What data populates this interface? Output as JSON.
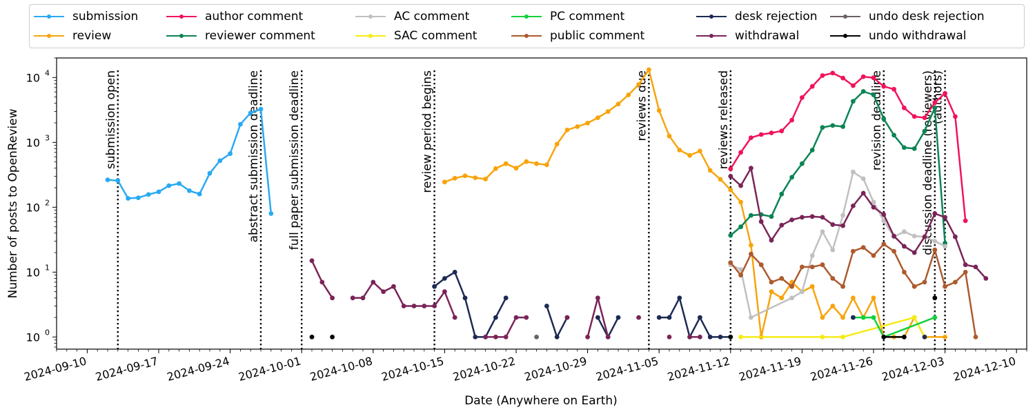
{
  "chart_data": {
    "type": "line",
    "xlabel": "Date (Anywhere on Earth)",
    "ylabel": "Number of posts to OpenReview",
    "yscale": "log",
    "ylim": [
      0.65,
      20000
    ],
    "xlim": [
      "2024-09-07",
      "2024-12-11"
    ],
    "grid": false,
    "legend_position": "top",
    "x_ticks": [
      "2024-09-10",
      "2024-09-17",
      "2024-09-24",
      "2024-10-01",
      "2024-10-08",
      "2024-10-15",
      "2024-10-22",
      "2024-10-29",
      "2024-11-05",
      "2024-11-12",
      "2024-11-19",
      "2024-11-26",
      "2024-12-03",
      "2024-12-10"
    ],
    "y_ticks": [
      {
        "value": 1,
        "label": "10",
        "exp": "0"
      },
      {
        "value": 10,
        "label": "10",
        "exp": "1"
      },
      {
        "value": 100,
        "label": "10",
        "exp": "2"
      },
      {
        "value": 1000,
        "label": "10",
        "exp": "3"
      },
      {
        "value": 10000,
        "label": "10",
        "exp": "4"
      }
    ],
    "deadlines": [
      {
        "date": "2024-09-13",
        "label": "submission open"
      },
      {
        "date": "2024-09-27",
        "label": "abstract submission deadline"
      },
      {
        "date": "2024-10-01",
        "label": "full paper submission deadline"
      },
      {
        "date": "2024-10-14",
        "label": "review period begins"
      },
      {
        "date": "2024-11-04",
        "label": "reviews due"
      },
      {
        "date": "2024-11-12",
        "label": "reviews released"
      },
      {
        "date": "2024-11-27",
        "label": "revision deadline"
      },
      {
        "date": "2024-12-02",
        "label": "discussion deadline (reviewers)"
      },
      {
        "date": "2024-12-03",
        "label": "(authors)"
      }
    ],
    "series": [
      {
        "name": "submission",
        "color": "#29aaf2",
        "points": [
          [
            "2024-09-12",
            265
          ],
          [
            "2024-09-13",
            258
          ],
          [
            "2024-09-14",
            137
          ],
          [
            "2024-09-15",
            140
          ],
          [
            "2024-09-16",
            157
          ],
          [
            "2024-09-17",
            173
          ],
          [
            "2024-09-18",
            215
          ],
          [
            "2024-09-19",
            232
          ],
          [
            "2024-09-20",
            180
          ],
          [
            "2024-09-21",
            160
          ],
          [
            "2024-09-22",
            333
          ],
          [
            "2024-09-23",
            522
          ],
          [
            "2024-09-24",
            669
          ],
          [
            "2024-09-25",
            1900
          ],
          [
            "2024-09-26",
            2850
          ],
          [
            "2024-09-27",
            3250
          ],
          [
            "2024-09-28",
            80
          ]
        ]
      },
      {
        "name": "review",
        "color": "#f7a40c",
        "points": [
          [
            "2024-10-15",
            245
          ],
          [
            "2024-10-16",
            280
          ],
          [
            "2024-10-17",
            305
          ],
          [
            "2024-10-18",
            285
          ],
          [
            "2024-10-19",
            272
          ],
          [
            "2024-10-20",
            395
          ],
          [
            "2024-10-21",
            470
          ],
          [
            "2024-10-22",
            400
          ],
          [
            "2024-10-23",
            505
          ],
          [
            "2024-10-24",
            470
          ],
          [
            "2024-10-25",
            450
          ],
          [
            "2024-10-26",
            940
          ],
          [
            "2024-10-27",
            1550
          ],
          [
            "2024-10-28",
            1750
          ],
          [
            "2024-10-29",
            1980
          ],
          [
            "2024-10-30",
            2400
          ],
          [
            "2024-10-31",
            2980
          ],
          [
            "2024-11-01",
            3900
          ],
          [
            "2024-11-02",
            5400
          ],
          [
            "2024-11-03",
            7800
          ],
          [
            "2024-11-04",
            13200
          ],
          [
            "2024-11-05",
            3100
          ],
          [
            "2024-11-06",
            1250
          ],
          [
            "2024-11-07",
            760
          ],
          [
            "2024-11-08",
            630
          ],
          [
            "2024-11-09",
            735
          ],
          [
            "2024-11-10",
            370
          ],
          [
            "2024-11-11",
            270
          ],
          [
            "2024-11-12",
            185
          ],
          [
            "2024-11-13",
            120
          ],
          [
            "2024-11-14",
            26
          ],
          [
            "2024-11-15",
            1
          ],
          [
            "2024-11-16",
            5
          ],
          [
            "2024-11-17",
            4
          ],
          [
            "2024-11-18",
            7
          ],
          [
            "2024-11-19",
            5
          ],
          [
            "2024-11-20",
            6
          ],
          [
            "2024-11-21",
            2
          ],
          [
            "2024-11-22",
            3
          ],
          [
            "2024-11-23",
            2
          ],
          [
            "2024-11-24",
            4
          ],
          [
            "2024-11-25",
            2
          ],
          [
            "2024-11-26",
            4
          ],
          [
            "2024-11-27",
            1
          ],
          [
            "2024-11-28",
            1
          ],
          [
            "2024-11-29",
            1
          ],
          [
            "2024-11-30",
            2
          ],
          [
            "2024-12-01",
            1
          ],
          [
            "2024-12-03",
            1
          ]
        ]
      },
      {
        "name": "author comment",
        "color": "#f0145a",
        "points": [
          [
            "2024-11-12",
            390
          ],
          [
            "2024-11-13",
            700
          ],
          [
            "2024-11-14",
            1180
          ],
          [
            "2024-11-15",
            1320
          ],
          [
            "2024-11-16",
            1400
          ],
          [
            "2024-11-17",
            1500
          ],
          [
            "2024-11-18",
            2200
          ],
          [
            "2024-11-19",
            4900
          ],
          [
            "2024-11-20",
            7300
          ],
          [
            "2024-11-21",
            10700
          ],
          [
            "2024-11-22",
            11700
          ],
          [
            "2024-11-23",
            9800
          ],
          [
            "2024-11-24",
            7500
          ],
          [
            "2024-11-25",
            10300
          ],
          [
            "2024-11-26",
            9900
          ],
          [
            "2024-11-27",
            7300
          ],
          [
            "2024-11-28",
            6600
          ],
          [
            "2024-11-29",
            3400
          ],
          [
            "2024-11-30",
            2500
          ],
          [
            "2024-12-01",
            2400
          ],
          [
            "2024-12-02",
            4100
          ],
          [
            "2024-12-03",
            5700
          ],
          [
            "2024-12-04",
            2500
          ],
          [
            "2024-12-05",
            62
          ]
        ]
      },
      {
        "name": "reviewer comment",
        "color": "#0c8454",
        "points": [
          [
            "2024-11-12",
            37
          ],
          [
            "2024-11-13",
            50
          ],
          [
            "2024-11-14",
            75
          ],
          [
            "2024-11-15",
            77
          ],
          [
            "2024-11-16",
            72
          ],
          [
            "2024-11-17",
            160
          ],
          [
            "2024-11-18",
            290
          ],
          [
            "2024-11-19",
            470
          ],
          [
            "2024-11-20",
            760
          ],
          [
            "2024-11-21",
            1700
          ],
          [
            "2024-11-22",
            1820
          ],
          [
            "2024-11-23",
            1750
          ],
          [
            "2024-11-24",
            4300
          ],
          [
            "2024-11-25",
            6100
          ],
          [
            "2024-11-26",
            5400
          ],
          [
            "2024-11-27",
            2300
          ],
          [
            "2024-11-28",
            1290
          ],
          [
            "2024-11-29",
            830
          ],
          [
            "2024-11-30",
            800
          ],
          [
            "2024-12-01",
            1490
          ],
          [
            "2024-12-02",
            3400
          ],
          [
            "2024-12-03",
            28
          ]
        ]
      },
      {
        "name": "AC comment",
        "color": "#c0c0c0",
        "points": [
          [
            "2024-11-12",
            13
          ],
          [
            "2024-11-13",
            11
          ],
          [
            "2024-11-14",
            2
          ],
          [
            "2024-11-18",
            4
          ],
          [
            "2024-11-19",
            5
          ],
          [
            "2024-11-20",
            18
          ],
          [
            "2024-11-21",
            42
          ],
          [
            "2024-11-22",
            22
          ],
          [
            "2024-11-23",
            75
          ],
          [
            "2024-11-24",
            350
          ],
          [
            "2024-11-25",
            275
          ],
          [
            "2024-11-26",
            120
          ],
          [
            "2024-11-27",
            62
          ],
          [
            "2024-11-28",
            35
          ],
          [
            "2024-11-29",
            42
          ],
          [
            "2024-11-30",
            36
          ],
          [
            "2024-12-01",
            35
          ],
          [
            "2024-12-02",
            30
          ],
          [
            "2024-12-03",
            25
          ]
        ]
      },
      {
        "name": "SAC comment",
        "color": "#f5eb14",
        "points": [
          [
            "2024-11-13",
            1
          ],
          [
            "2024-11-21",
            1
          ],
          [
            "2024-11-23",
            1
          ],
          [
            "2024-11-30",
            2
          ],
          [
            "2024-12-01",
            1
          ]
        ]
      },
      {
        "name": "PC comment",
        "color": "#14d03c",
        "points": [
          [
            "2024-11-24",
            2
          ],
          [
            "2024-11-25",
            2
          ],
          [
            "2024-11-26",
            2
          ],
          [
            "2024-11-27",
            1
          ],
          [
            "2024-12-02",
            2
          ]
        ]
      },
      {
        "name": "public comment",
        "color": "#ac5a2e",
        "points": [
          [
            "2024-11-12",
            14
          ],
          [
            "2024-11-13",
            9
          ],
          [
            "2024-11-14",
            19
          ],
          [
            "2024-11-15",
            13
          ],
          [
            "2024-11-16",
            7
          ],
          [
            "2024-11-17",
            8
          ],
          [
            "2024-11-18",
            6
          ],
          [
            "2024-11-19",
            12
          ],
          [
            "2024-11-20",
            12
          ],
          [
            "2024-11-21",
            13
          ],
          [
            "2024-11-22",
            8
          ],
          [
            "2024-11-23",
            6
          ],
          [
            "2024-11-24",
            21
          ],
          [
            "2024-11-25",
            24
          ],
          [
            "2024-11-26",
            18
          ],
          [
            "2024-11-27",
            27
          ],
          [
            "2024-11-28",
            21
          ],
          [
            "2024-11-29",
            10
          ],
          [
            "2024-11-30",
            6
          ],
          [
            "2024-12-01",
            7
          ],
          [
            "2024-12-02",
            22
          ],
          [
            "2024-12-03",
            6
          ],
          [
            "2024-12-04",
            7
          ],
          [
            "2024-12-05",
            10
          ],
          [
            "2024-12-06",
            1
          ]
        ]
      },
      {
        "name": "desk rejection",
        "color": "#1c2a54",
        "points": [
          [
            "2024-10-14",
            6
          ],
          [
            "2024-10-15",
            8
          ],
          [
            "2024-10-16",
            10
          ],
          [
            "2024-10-17",
            4
          ],
          [
            "2024-10-18",
            1
          ],
          [
            "2024-10-19",
            1
          ],
          [
            "2024-10-20",
            2
          ],
          [
            "2024-10-21",
            4
          ],
          null,
          [
            "2024-10-25",
            3
          ],
          [
            "2024-10-26",
            1
          ],
          [
            "2024-10-27",
            2
          ],
          null,
          [
            "2024-10-30",
            2
          ],
          [
            "2024-10-31",
            1
          ],
          [
            "2024-11-01",
            2
          ],
          null,
          [
            "2024-11-05",
            2
          ],
          [
            "2024-11-06",
            2
          ],
          [
            "2024-11-07",
            4
          ],
          [
            "2024-11-08",
            1
          ],
          [
            "2024-11-09",
            2
          ],
          [
            "2024-11-10",
            1
          ],
          [
            "2024-11-11",
            1
          ],
          [
            "2024-11-12",
            1
          ],
          null,
          [
            "2024-11-24",
            2
          ],
          null,
          [
            "2024-12-01",
            1
          ]
        ]
      },
      {
        "name": "withdrawal",
        "color": "#7a2458",
        "points": [
          [
            "2024-10-02",
            15
          ],
          [
            "2024-10-03",
            7
          ],
          [
            "2024-10-04",
            4
          ],
          null,
          [
            "2024-10-06",
            4
          ],
          [
            "2024-10-07",
            4
          ],
          [
            "2024-10-08",
            7
          ],
          [
            "2024-10-09",
            5
          ],
          [
            "2024-10-10",
            6
          ],
          [
            "2024-10-11",
            3
          ],
          [
            "2024-10-12",
            3
          ],
          [
            "2024-10-13",
            3
          ],
          [
            "2024-10-14",
            3
          ],
          [
            "2024-10-15",
            5
          ],
          [
            "2024-10-16",
            2
          ],
          null,
          [
            "2024-10-19",
            1
          ],
          [
            "2024-10-20",
            1
          ],
          [
            "2024-10-21",
            1
          ],
          [
            "2024-10-22",
            2
          ],
          [
            "2024-10-23",
            2
          ],
          null,
          [
            "2024-10-27",
            2
          ],
          null,
          [
            "2024-10-29",
            1
          ],
          [
            "2024-10-30",
            4
          ],
          [
            "2024-10-31",
            1
          ],
          null,
          [
            "2024-11-03",
            2
          ],
          null,
          [
            "2024-11-06",
            1
          ],
          null,
          [
            "2024-11-08",
            1
          ],
          [
            "2024-11-09",
            1
          ],
          null,
          [
            "2024-11-12",
            300
          ],
          [
            "2024-11-13",
            215
          ],
          [
            "2024-11-14",
            400
          ],
          [
            "2024-11-15",
            60
          ],
          [
            "2024-11-16",
            31
          ],
          [
            "2024-11-17",
            53
          ],
          [
            "2024-11-18",
            64
          ],
          [
            "2024-11-19",
            70
          ],
          [
            "2024-11-20",
            72
          ],
          [
            "2024-11-21",
            70
          ],
          [
            "2024-11-22",
            54
          ],
          [
            "2024-11-23",
            52
          ],
          [
            "2024-11-24",
            105
          ],
          [
            "2024-11-25",
            165
          ],
          [
            "2024-11-26",
            100
          ],
          [
            "2024-11-27",
            77
          ],
          [
            "2024-11-28",
            36
          ],
          [
            "2024-11-29",
            25
          ],
          [
            "2024-11-30",
            20
          ],
          [
            "2024-12-01",
            35
          ],
          [
            "2024-12-02",
            80
          ],
          [
            "2024-12-03",
            70
          ],
          [
            "2024-12-04",
            35
          ],
          [
            "2024-12-05",
            13
          ],
          [
            "2024-12-06",
            12
          ],
          [
            "2024-12-07",
            8
          ]
        ]
      },
      {
        "name": "undo desk rejection",
        "color": "#6a6260",
        "points": [
          [
            "2024-10-24",
            1
          ]
        ]
      },
      {
        "name": "undo withdrawal",
        "color": "#000000",
        "points": [
          [
            "2024-10-02",
            1
          ],
          null,
          [
            "2024-10-04",
            1
          ],
          null,
          [
            "2024-11-12",
            1
          ],
          null,
          [
            "2024-11-27",
            1
          ],
          [
            "2024-11-29",
            1
          ],
          null,
          [
            "2024-12-02",
            4
          ]
        ]
      }
    ]
  }
}
